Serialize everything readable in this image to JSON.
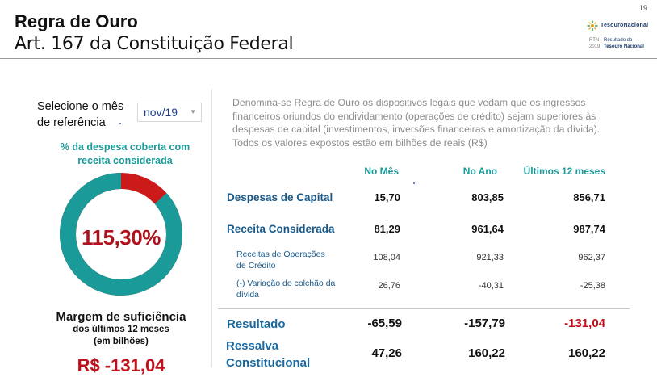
{
  "header": {
    "title": "Regra de Ouro",
    "subtitle": "Art. 167 da Constituição Federal",
    "page_number": "19"
  },
  "logo": {
    "brand": "TesouroNacional",
    "rtn_label": "RTN",
    "rtn_year": "2019",
    "rtn_line1": "Resultado do",
    "rtn_line2": "Tesouro Nacional"
  },
  "left_panel": {
    "select_label_line1": "Selecione o mês",
    "select_label_line2": "de referência",
    "selected_month": "nov/19",
    "coverage_label_line1": "% da despesa coberta com",
    "coverage_label_line2": "receita considerada",
    "coverage_value": "115,30%",
    "coverage_fraction": 0.867,
    "margin_title": "Margem de suficiência",
    "margin_sub1": "dos últimos 12 meses",
    "margin_sub2": "(em bilhões)",
    "margin_value": "R$ -131,04"
  },
  "description": "Denomina-se Regra de Ouro os dispositivos legais que vedam que os ingressos financeiros oriundos do endividamento (operações de crédito) sejam superiores às despesas de capital (investimentos, inversões financeiras e amortização da dívida). Todos os valores expostos estão em bilhões de reais (R$)",
  "table": {
    "columns": [
      "No Mês",
      "No Ano",
      "Últimos 12 meses"
    ],
    "despesas": {
      "label": "Despesas de Capital",
      "values": [
        "15,70",
        "803,85",
        "856,71"
      ]
    },
    "receita": {
      "label": "Receita Considerada",
      "values": [
        "81,29",
        "961,64",
        "987,74"
      ]
    },
    "operacoes": {
      "label_line1": "Receitas de Operações",
      "label_line2": "de Crédito",
      "values": [
        "108,04",
        "921,33",
        "962,37"
      ]
    },
    "colchao": {
      "label_line1": "(-) Variação do colchão da",
      "label_line2": "dívida",
      "values": [
        "26,76",
        "-40,31",
        "-25,38"
      ]
    },
    "resultado": {
      "label": "Resultado",
      "values": [
        "-65,59",
        "-157,79",
        "-131,04"
      ]
    },
    "ressalva": {
      "label_line1": "Ressalva",
      "label_line2": "Constitucional",
      "values": [
        "47,26",
        "160,22",
        "160,22"
      ]
    }
  },
  "colors": {
    "teal": "#1a9a98",
    "red": "#cc1a1a",
    "value_red": "#c0121c"
  }
}
